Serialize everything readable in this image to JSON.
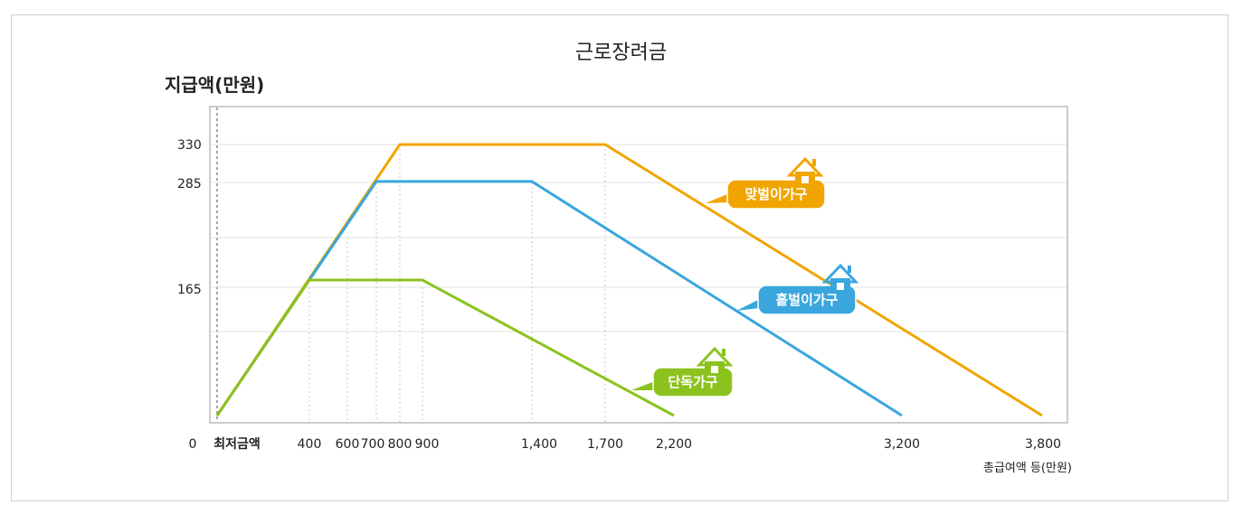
{
  "chart_data": {
    "type": "line",
    "title": "근로장려금",
    "ylabel": "지급액(만원)",
    "xlabel": "총급여액 등(만원)",
    "x_ticks": [
      "0",
      "최저금액",
      "400",
      "600",
      "700",
      "800",
      "900",
      "1,400",
      "1,700",
      "2,200",
      "3,200",
      "3,800"
    ],
    "y_ticks": [
      "330",
      "285",
      "165"
    ],
    "grid": true,
    "series": [
      {
        "name": "맞벌이가구",
        "color": "#f0a500",
        "x": [
          0,
          800,
          1700,
          3800
        ],
        "y": [
          0,
          330,
          330,
          0
        ]
      },
      {
        "name": "홑벌이가구",
        "color": "#3aa6dd",
        "x": [
          0,
          700,
          1400,
          3200
        ],
        "y": [
          0,
          285,
          285,
          0
        ]
      },
      {
        "name": "단독가구",
        "color": "#8cc21e",
        "x": [
          0,
          400,
          900,
          2200
        ],
        "y": [
          0,
          165,
          165,
          0
        ]
      }
    ]
  }
}
